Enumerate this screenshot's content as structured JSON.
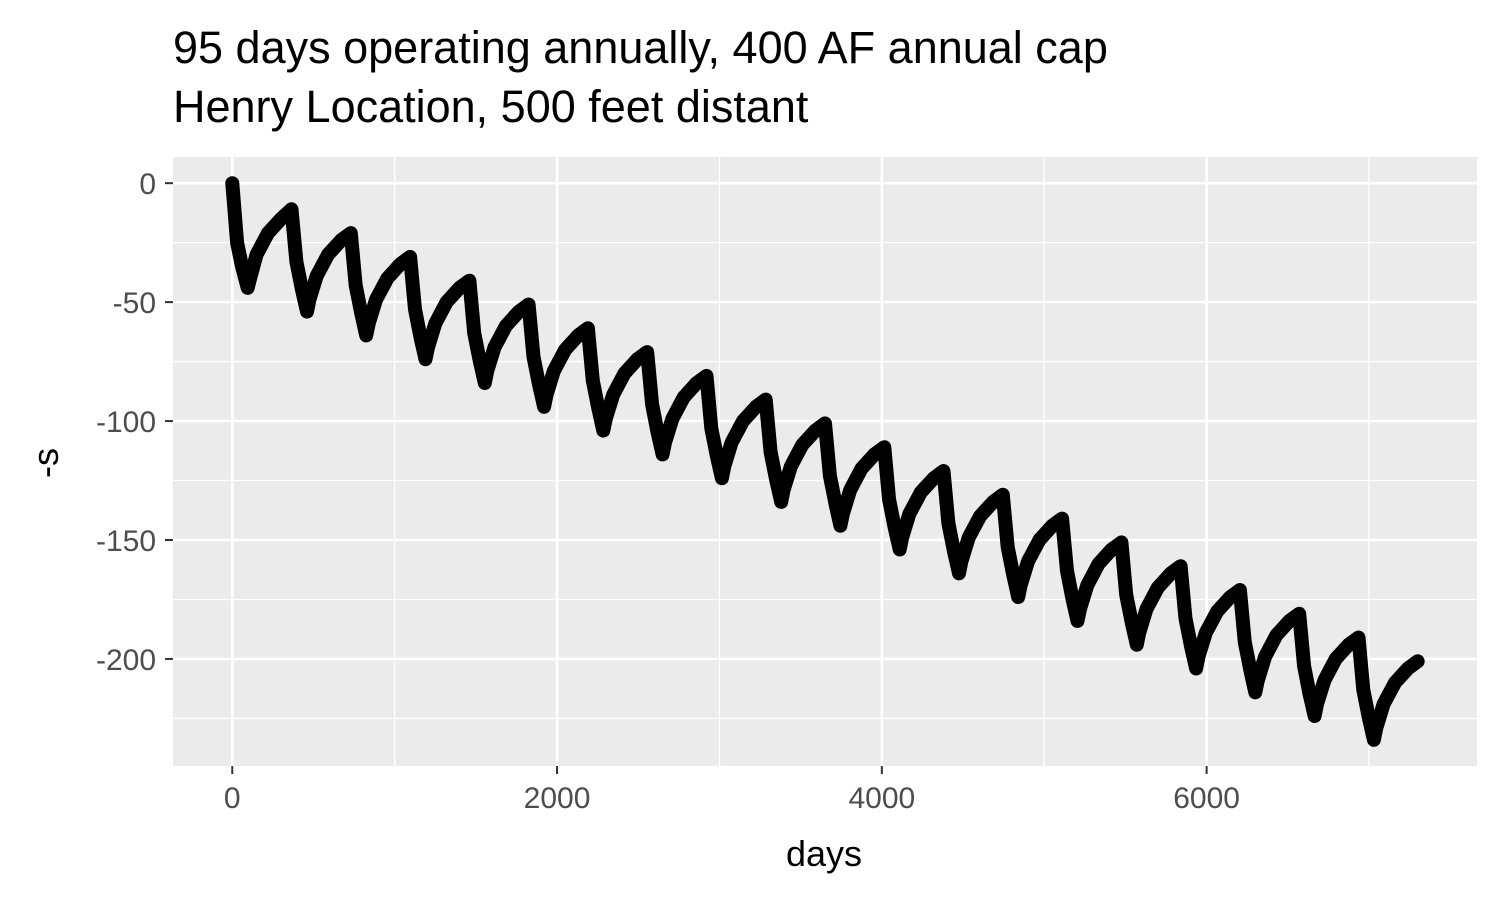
{
  "chart_data": {
    "type": "line",
    "title": [
      "95 days operating annually, 400 AF annual cap",
      "Henry Location, 500 feet distant"
    ],
    "xlabel": "days",
    "ylabel": "-s",
    "xlim": [
      -365,
      7665
    ],
    "ylim": [
      -245,
      11
    ],
    "x_ticks": [
      0,
      2000,
      4000,
      6000
    ],
    "x_tick_labels": [
      "0",
      "2000",
      "4000",
      "6000"
    ],
    "y_ticks": [
      0,
      -50,
      -100,
      -150,
      -200
    ],
    "y_tick_labels": [
      "0",
      "-50",
      "-100",
      "-150",
      "-200"
    ],
    "grid": true,
    "background": "#ebebeb",
    "gridline_color": "#ffffff",
    "line_color": "#000000",
    "series": [
      {
        "values": [
          [
            0,
            0
          ],
          [
            30,
            -25
          ],
          [
            60,
            -35
          ],
          [
            95,
            -44
          ],
          [
            110,
            -40
          ],
          [
            150,
            -30
          ],
          [
            220,
            -21
          ],
          [
            300,
            -15
          ],
          [
            365,
            -11
          ],
          [
            395,
            -33
          ],
          [
            430,
            -45
          ],
          [
            460,
            -54
          ],
          [
            475,
            -49
          ],
          [
            520,
            -39
          ],
          [
            590,
            -30
          ],
          [
            670,
            -24
          ],
          [
            730,
            -21
          ],
          [
            760,
            -43
          ],
          [
            795,
            -55
          ],
          [
            825,
            -64
          ],
          [
            840,
            -59
          ],
          [
            885,
            -49
          ],
          [
            955,
            -40
          ],
          [
            1035,
            -34
          ],
          [
            1095,
            -31
          ],
          [
            1125,
            -53
          ],
          [
            1160,
            -65
          ],
          [
            1190,
            -74
          ],
          [
            1205,
            -69
          ],
          [
            1250,
            -59
          ],
          [
            1320,
            -50
          ],
          [
            1400,
            -44
          ],
          [
            1460,
            -41
          ],
          [
            1490,
            -63
          ],
          [
            1525,
            -75
          ],
          [
            1555,
            -84
          ],
          [
            1570,
            -79
          ],
          [
            1615,
            -69
          ],
          [
            1685,
            -60
          ],
          [
            1765,
            -54
          ],
          [
            1825,
            -51
          ],
          [
            1855,
            -73
          ],
          [
            1890,
            -85
          ],
          [
            1920,
            -94
          ],
          [
            1935,
            -89
          ],
          [
            1980,
            -79
          ],
          [
            2050,
            -70
          ],
          [
            2130,
            -64
          ],
          [
            2190,
            -61
          ],
          [
            2220,
            -83
          ],
          [
            2255,
            -95
          ],
          [
            2285,
            -104
          ],
          [
            2300,
            -99
          ],
          [
            2345,
            -89
          ],
          [
            2415,
            -80
          ],
          [
            2495,
            -74
          ],
          [
            2555,
            -71
          ],
          [
            2585,
            -93
          ],
          [
            2620,
            -105
          ],
          [
            2650,
            -114
          ],
          [
            2665,
            -109
          ],
          [
            2710,
            -99
          ],
          [
            2780,
            -90
          ],
          [
            2860,
            -84
          ],
          [
            2920,
            -81
          ],
          [
            2950,
            -103
          ],
          [
            2985,
            -115
          ],
          [
            3015,
            -124
          ],
          [
            3030,
            -119
          ],
          [
            3075,
            -109
          ],
          [
            3145,
            -100
          ],
          [
            3225,
            -94
          ],
          [
            3285,
            -91
          ],
          [
            3315,
            -113
          ],
          [
            3350,
            -125
          ],
          [
            3380,
            -134
          ],
          [
            3395,
            -129
          ],
          [
            3440,
            -119
          ],
          [
            3510,
            -110
          ],
          [
            3590,
            -104
          ],
          [
            3650,
            -101
          ],
          [
            3680,
            -123
          ],
          [
            3715,
            -135
          ],
          [
            3745,
            -144
          ],
          [
            3760,
            -139
          ],
          [
            3805,
            -129
          ],
          [
            3875,
            -120
          ],
          [
            3955,
            -114
          ],
          [
            4015,
            -111
          ],
          [
            4045,
            -133
          ],
          [
            4080,
            -145
          ],
          [
            4110,
            -154
          ],
          [
            4125,
            -149
          ],
          [
            4170,
            -139
          ],
          [
            4240,
            -130
          ],
          [
            4320,
            -124
          ],
          [
            4380,
            -121
          ],
          [
            4410,
            -143
          ],
          [
            4445,
            -155
          ],
          [
            4475,
            -164
          ],
          [
            4490,
            -159
          ],
          [
            4535,
            -149
          ],
          [
            4605,
            -140
          ],
          [
            4685,
            -134
          ],
          [
            4745,
            -131
          ],
          [
            4775,
            -153
          ],
          [
            4810,
            -165
          ],
          [
            4840,
            -174
          ],
          [
            4855,
            -169
          ],
          [
            4900,
            -159
          ],
          [
            4970,
            -150
          ],
          [
            5050,
            -144
          ],
          [
            5110,
            -141
          ],
          [
            5140,
            -163
          ],
          [
            5175,
            -175
          ],
          [
            5205,
            -184
          ],
          [
            5220,
            -179
          ],
          [
            5265,
            -169
          ],
          [
            5335,
            -160
          ],
          [
            5415,
            -154
          ],
          [
            5475,
            -151
          ],
          [
            5505,
            -173
          ],
          [
            5540,
            -185
          ],
          [
            5570,
            -194
          ],
          [
            5585,
            -189
          ],
          [
            5630,
            -179
          ],
          [
            5700,
            -170
          ],
          [
            5780,
            -164
          ],
          [
            5840,
            -161
          ],
          [
            5870,
            -183
          ],
          [
            5905,
            -195
          ],
          [
            5935,
            -204
          ],
          [
            5950,
            -199
          ],
          [
            5995,
            -189
          ],
          [
            6065,
            -180
          ],
          [
            6145,
            -174
          ],
          [
            6205,
            -171
          ],
          [
            6235,
            -193
          ],
          [
            6270,
            -205
          ],
          [
            6300,
            -214
          ],
          [
            6315,
            -209
          ],
          [
            6360,
            -199
          ],
          [
            6430,
            -190
          ],
          [
            6510,
            -184
          ],
          [
            6570,
            -181
          ],
          [
            6600,
            -203
          ],
          [
            6635,
            -215
          ],
          [
            6665,
            -224
          ],
          [
            6680,
            -219
          ],
          [
            6725,
            -209
          ],
          [
            6795,
            -200
          ],
          [
            6875,
            -194
          ],
          [
            6935,
            -191
          ],
          [
            6965,
            -213
          ],
          [
            7000,
            -225
          ],
          [
            7030,
            -234
          ],
          [
            7045,
            -229
          ],
          [
            7090,
            -219
          ],
          [
            7160,
            -210
          ],
          [
            7240,
            -204
          ],
          [
            7300,
            -201
          ]
        ]
      }
    ]
  }
}
